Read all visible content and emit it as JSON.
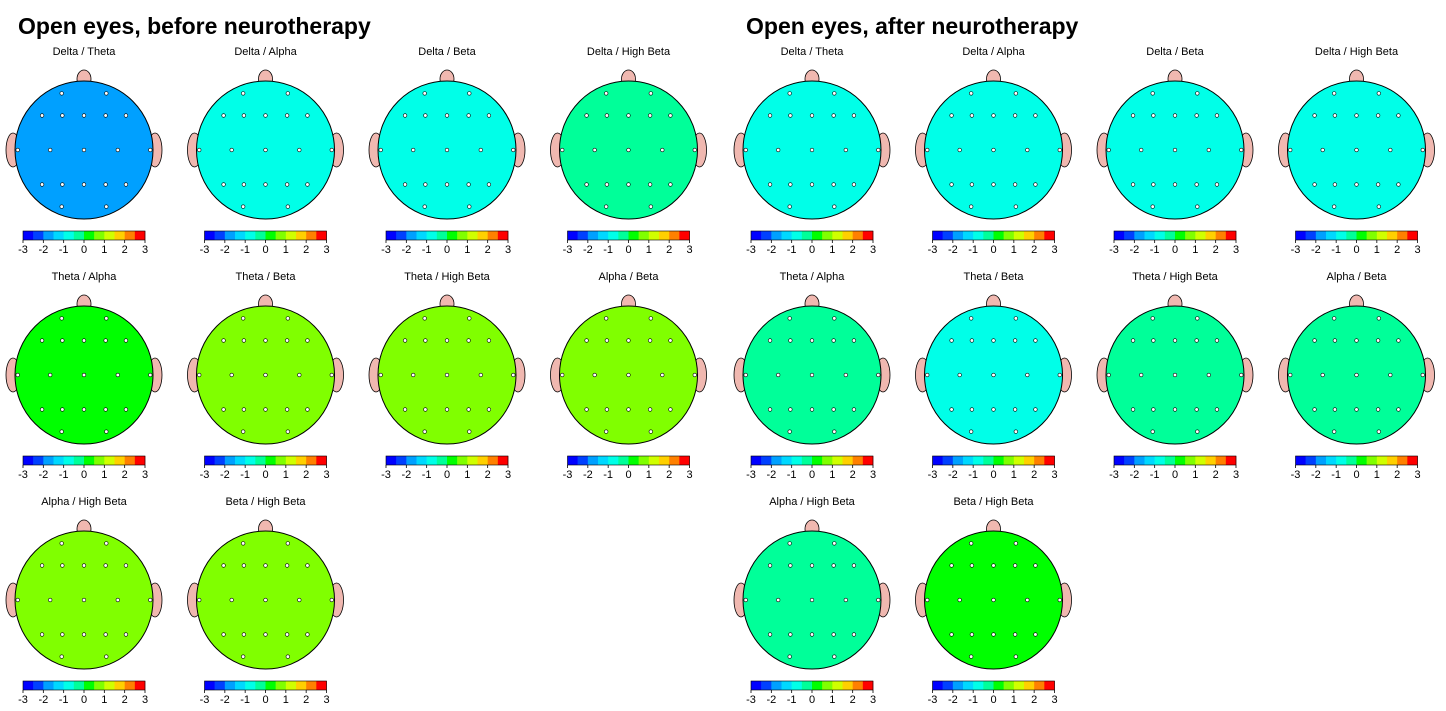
{
  "panels": [
    {
      "title": "Open eyes, before neurotherapy",
      "maps": [
        {
          "label": "Delta / Theta",
          "level": -2
        },
        {
          "label": "Delta / Alpha",
          "level": -0.8
        },
        {
          "label": "Delta / Beta",
          "level": -0.6
        },
        {
          "label": "Delta / High Beta",
          "level": -0.2
        },
        {
          "label": "Theta / Alpha",
          "level": 0
        },
        {
          "label": "Theta / Beta",
          "level": 0.7
        },
        {
          "label": "Theta / High Beta",
          "level": 0.9
        },
        {
          "label": "Alpha / Beta",
          "level": 0.6
        },
        {
          "label": "Alpha / High Beta",
          "level": 0.6
        },
        {
          "label": "Beta / High Beta",
          "level": 0.5
        }
      ]
    },
    {
      "title": "Open eyes, after neurotherapy",
      "maps": [
        {
          "label": "Delta / Theta",
          "level": -0.7
        },
        {
          "label": "Delta / Alpha",
          "level": -0.6
        },
        {
          "label": "Delta / Beta",
          "level": -0.9
        },
        {
          "label": "Delta / High Beta",
          "level": -0.7
        },
        {
          "label": "Theta / Alpha",
          "level": -0.1
        },
        {
          "label": "Theta / Beta",
          "level": -0.6
        },
        {
          "label": "Theta / High Beta",
          "level": -0.2
        },
        {
          "label": "Alpha / Beta",
          "level": -0.2
        },
        {
          "label": "Alpha / High Beta",
          "level": -0.1
        },
        {
          "label": "Beta / High Beta",
          "level": 0.2
        }
      ]
    }
  ],
  "colorbar": {
    "lim": [
      -3,
      3
    ],
    "ticks": [
      -3,
      -2,
      -1,
      0,
      1,
      2,
      3
    ],
    "colors": [
      "#0000ff",
      "#0040ff",
      "#00a0ff",
      "#00d8ff",
      "#00ffe8",
      "#00ff99",
      "#00ff00",
      "#80ff00",
      "#d0ff00",
      "#ffd000",
      "#ff8000",
      "#ff0000"
    ]
  }
}
